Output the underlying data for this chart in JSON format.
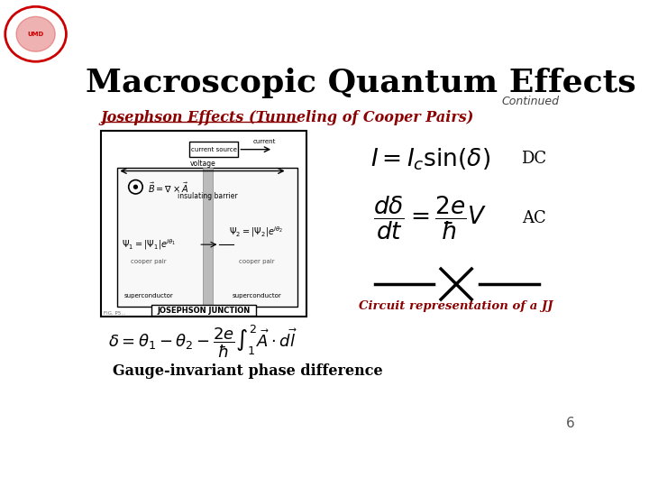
{
  "title": "Macroscopic Quantum Effects",
  "continued_text": "Continued",
  "subtitle": "Josephson Effects (Tunneling of Cooper Pairs)",
  "dc_label": "DC",
  "ac_label": "AC",
  "dc_formula": "$I = I_c \\sin(\\delta)$",
  "ac_formula": "$\\dfrac{d\\delta}{dt} = \\dfrac{2e}{\\hbar}V$",
  "gauge_formula": "$\\delta = \\theta_1 - \\theta_2 - \\dfrac{2e}{\\hbar}\\int_{1}^{2}\\vec{A}\\cdot d\\vec{l}$",
  "gauge_label": "Gauge-invariant phase difference",
  "circuit_label": "Circuit representation of a JJ",
  "bg_color": "#ffffff",
  "title_color": "#000000",
  "subtitle_color": "#8B0000",
  "formula_color": "#000000",
  "dc_ac_color": "#000000",
  "circuit_label_color": "#8B0000",
  "gauge_label_color": "#000000",
  "page_number": "6"
}
